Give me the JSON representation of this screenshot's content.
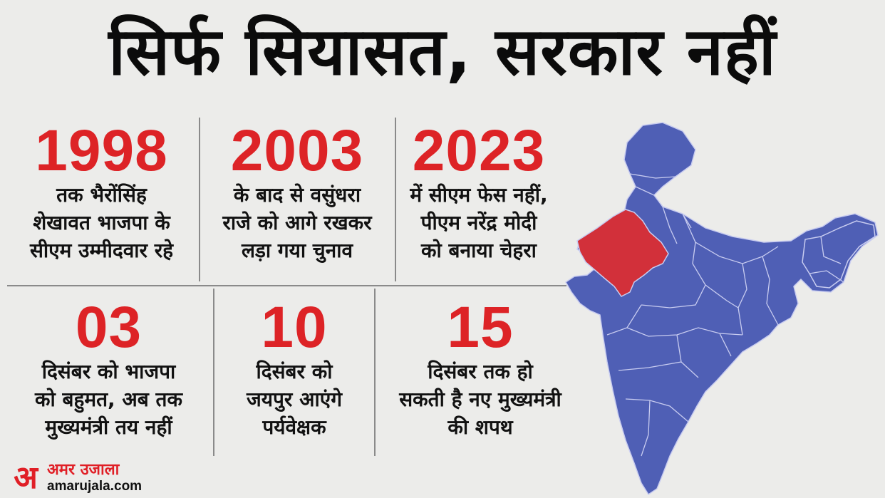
{
  "title": "सिर्फ सियासत, सरकार नहीं",
  "cards": [
    {
      "number": "1998",
      "text": "तक भैरोंसिंह\nशेखावत भाजपा के\nसीएम उम्मीदवार रहे"
    },
    {
      "number": "2003",
      "text": "के बाद से वसुंधरा\nराजे को आगे रखकर\nलड़ा गया चुनाव"
    },
    {
      "number": "2023",
      "text": "में सीएम फेस नहीं,\nपीएम नरेंद्र मोदी\nको बनाया चेहरा"
    },
    {
      "number": "03",
      "text": "दिसंबर को भाजपा\nको बहुमत, अब तक\nमुख्यमंत्री तय नहीं"
    },
    {
      "number": "10",
      "text": "दिसंबर को\nजयपुर आएंगे\nपर्यवेक्षक"
    },
    {
      "number": "15",
      "text": "दिसंबर तक हो\nसकती है नए मुख्यमंत्री\nकी शपथ"
    }
  ],
  "map": {
    "highlighted_state": "Rajasthan",
    "highlight_color": "#d2303a",
    "base_color": "#4f5fb5",
    "border_color": "#c8ccf0"
  },
  "logo": {
    "mark": "अ",
    "name": "अमर उजाला",
    "url": "amarujala.com",
    "color": "#e01f26"
  }
}
